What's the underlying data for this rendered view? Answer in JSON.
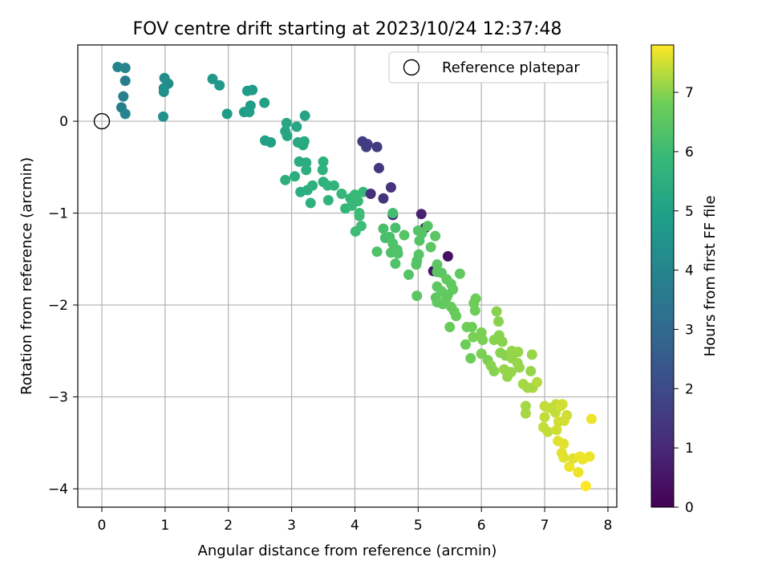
{
  "chart_data": {
    "type": "scatter",
    "title": "FOV centre drift starting at 2023/10/24 12:37:48",
    "xlabel": "Angular distance from reference (arcmin)",
    "ylabel": "Rotation from reference (arcmin)",
    "xlim": [
      -0.38,
      8.14
    ],
    "ylim": [
      -4.2,
      0.83
    ],
    "xticks": [
      0,
      1,
      2,
      3,
      4,
      5,
      6,
      7,
      8
    ],
    "yticks": [
      0,
      -1,
      -2,
      -3,
      -4
    ],
    "grid": true,
    "legend": {
      "position": "top-right",
      "entries": [
        "Reference platepar"
      ]
    },
    "reference_point": {
      "x": 0,
      "y": 0
    },
    "colorbar": {
      "label": "Hours from first FF file",
      "range": [
        0,
        7.8
      ],
      "ticks": [
        0,
        1,
        2,
        3,
        4,
        5,
        6,
        7
      ],
      "colormap": "viridis"
    },
    "points": [
      [
        0.25,
        0.59,
        4.0
      ],
      [
        0.37,
        0.58,
        4.0
      ],
      [
        0.37,
        0.44,
        3.8
      ],
      [
        0.34,
        0.27,
        3.7
      ],
      [
        0.31,
        0.15,
        3.8
      ],
      [
        0.37,
        0.08,
        4.0
      ],
      [
        0.99,
        0.47,
        4.3
      ],
      [
        1.05,
        0.41,
        4.3
      ],
      [
        0.98,
        0.36,
        4.3
      ],
      [
        0.98,
        0.32,
        4.4
      ],
      [
        0.97,
        0.05,
        4.4
      ],
      [
        1.75,
        0.46,
        4.7
      ],
      [
        1.86,
        0.39,
        4.7
      ],
      [
        1.98,
        0.08,
        4.8
      ],
      [
        2.25,
        0.1,
        4.8
      ],
      [
        2.3,
        0.33,
        4.8
      ],
      [
        2.38,
        0.34,
        4.8
      ],
      [
        2.35,
        0.17,
        4.8
      ],
      [
        2.33,
        0.1,
        4.9
      ],
      [
        2.57,
        0.2,
        5.0
      ],
      [
        2.58,
        -0.21,
        5.0
      ],
      [
        2.67,
        -0.23,
        5.0
      ],
      [
        2.92,
        -0.02,
        5.2
      ],
      [
        2.9,
        -0.11,
        5.2
      ],
      [
        2.93,
        -0.16,
        5.2
      ],
      [
        3.08,
        -0.06,
        5.2
      ],
      [
        3.21,
        0.06,
        5.1
      ],
      [
        3.1,
        -0.23,
        5.3
      ],
      [
        3.2,
        -0.22,
        5.3
      ],
      [
        3.18,
        -0.26,
        5.3
      ],
      [
        3.12,
        -0.44,
        5.4
      ],
      [
        3.23,
        -0.45,
        5.4
      ],
      [
        3.23,
        -0.53,
        5.5
      ],
      [
        3.05,
        -0.6,
        5.5
      ],
      [
        2.9,
        -0.64,
        5.5
      ],
      [
        3.14,
        -0.77,
        5.5
      ],
      [
        3.25,
        -0.75,
        5.5
      ],
      [
        3.33,
        -0.7,
        5.6
      ],
      [
        3.3,
        -0.89,
        5.6
      ],
      [
        3.5,
        -0.44,
        5.6
      ],
      [
        3.49,
        -0.53,
        5.6
      ],
      [
        3.5,
        -0.66,
        5.6
      ],
      [
        3.57,
        -0.7,
        5.7
      ],
      [
        3.67,
        -0.7,
        5.7
      ],
      [
        3.58,
        -0.86,
        5.7
      ],
      [
        3.79,
        -0.79,
        5.8
      ],
      [
        3.93,
        -0.84,
        5.8
      ],
      [
        3.85,
        -0.95,
        5.8
      ],
      [
        4.0,
        -0.8,
        5.9
      ],
      [
        4.05,
        -0.87,
        5.9
      ],
      [
        3.95,
        -0.92,
        5.9
      ],
      [
        4.13,
        -0.77,
        5.9
      ],
      [
        4.07,
        -1.0,
        6.0
      ],
      [
        4.07,
        -1.03,
        6.0
      ],
      [
        4.1,
        -1.14,
        6.0
      ],
      [
        4.01,
        -1.2,
        6.0
      ],
      [
        4.12,
        -0.22,
        1.6
      ],
      [
        4.18,
        -0.28,
        1.6
      ],
      [
        4.2,
        -0.25,
        1.6
      ],
      [
        4.35,
        -0.28,
        1.5
      ],
      [
        4.38,
        -0.51,
        1.4
      ],
      [
        4.57,
        -0.72,
        1.3
      ],
      [
        4.45,
        -0.84,
        1.3
      ],
      [
        4.25,
        -0.79,
        1.2
      ],
      [
        4.6,
        -1.02,
        1.1
      ],
      [
        5.05,
        -1.01,
        0.8
      ],
      [
        5.11,
        -1.16,
        0.6
      ],
      [
        5.47,
        -1.47,
        0.4
      ],
      [
        5.24,
        -1.63,
        0.5
      ],
      [
        4.6,
        -1.0,
        6.1
      ],
      [
        4.64,
        -1.16,
        6.2
      ],
      [
        4.45,
        -1.17,
        6.2
      ],
      [
        4.48,
        -1.27,
        6.2
      ],
      [
        4.55,
        -1.26,
        6.2
      ],
      [
        4.35,
        -1.42,
        6.3
      ],
      [
        4.6,
        -1.33,
        6.3
      ],
      [
        4.67,
        -1.4,
        6.3
      ],
      [
        4.57,
        -1.43,
        6.3
      ],
      [
        4.68,
        -1.44,
        6.3
      ],
      [
        4.64,
        -1.55,
        6.3
      ],
      [
        4.78,
        -1.24,
        6.4
      ],
      [
        4.85,
        -1.67,
        6.4
      ],
      [
        4.97,
        -1.56,
        6.4
      ],
      [
        4.98,
        -1.52,
        6.4
      ],
      [
        5.01,
        -1.45,
        6.4
      ],
      [
        5.02,
        -1.3,
        6.4
      ],
      [
        5.0,
        -1.19,
        6.4
      ],
      [
        5.06,
        -1.22,
        6.4
      ],
      [
        5.15,
        -1.14,
        6.4
      ],
      [
        5.2,
        -1.37,
        6.5
      ],
      [
        5.27,
        -1.25,
        6.5
      ],
      [
        4.98,
        -1.9,
        6.5
      ],
      [
        5.3,
        -1.56,
        6.5
      ],
      [
        5.3,
        -1.64,
        6.5
      ],
      [
        5.37,
        -1.65,
        6.5
      ],
      [
        5.3,
        -1.8,
        6.5
      ],
      [
        5.28,
        -1.92,
        6.5
      ],
      [
        5.3,
        -1.97,
        6.6
      ],
      [
        5.39,
        -1.99,
        6.6
      ],
      [
        5.37,
        -1.85,
        6.6
      ],
      [
        5.45,
        -1.72,
        6.6
      ],
      [
        5.52,
        -1.77,
        6.6
      ],
      [
        5.55,
        -1.83,
        6.6
      ],
      [
        5.47,
        -1.89,
        6.6
      ],
      [
        5.45,
        -1.92,
        6.6
      ],
      [
        5.52,
        -2.02,
        6.7
      ],
      [
        5.57,
        -2.07,
        6.7
      ],
      [
        5.6,
        -2.12,
        6.7
      ],
      [
        5.5,
        -2.24,
        6.7
      ],
      [
        5.66,
        -1.66,
        6.6
      ],
      [
        5.77,
        -2.24,
        6.8
      ],
      [
        5.75,
        -2.43,
        6.8
      ],
      [
        5.83,
        -2.58,
        6.8
      ],
      [
        5.85,
        -2.24,
        6.8
      ],
      [
        5.9,
        -2.06,
        6.8
      ],
      [
        5.91,
        -1.93,
        6.8
      ],
      [
        5.88,
        -1.98,
        6.8
      ],
      [
        5.87,
        -2.35,
        6.9
      ],
      [
        6.0,
        -2.3,
        6.9
      ],
      [
        6.02,
        -2.38,
        6.9
      ],
      [
        6.0,
        -2.53,
        6.9
      ],
      [
        6.1,
        -2.6,
        6.9
      ],
      [
        6.15,
        -2.66,
        7.0
      ],
      [
        6.2,
        -2.72,
        7.0
      ],
      [
        6.24,
        -2.07,
        7.0
      ],
      [
        6.27,
        -2.18,
        7.0
      ],
      [
        6.2,
        -2.38,
        7.0
      ],
      [
        6.28,
        -2.33,
        7.0
      ],
      [
        6.33,
        -2.4,
        7.0
      ],
      [
        6.3,
        -2.52,
        7.0
      ],
      [
        6.38,
        -2.55,
        7.0
      ],
      [
        6.36,
        -2.7,
        7.1
      ],
      [
        6.41,
        -2.78,
        7.1
      ],
      [
        6.47,
        -2.73,
        7.1
      ],
      [
        6.48,
        -2.58,
        7.1
      ],
      [
        6.48,
        -2.5,
        7.1
      ],
      [
        6.58,
        -2.51,
        7.1
      ],
      [
        6.57,
        -2.63,
        7.1
      ],
      [
        6.6,
        -2.68,
        7.1
      ],
      [
        6.66,
        -2.86,
        7.2
      ],
      [
        6.73,
        -2.9,
        7.2
      ],
      [
        6.78,
        -2.72,
        7.1
      ],
      [
        6.8,
        -2.54,
        7.1
      ],
      [
        6.81,
        -2.9,
        7.2
      ],
      [
        6.7,
        -3.1,
        7.2
      ],
      [
        6.7,
        -3.18,
        7.2
      ],
      [
        6.88,
        -2.84,
        7.3
      ],
      [
        7.0,
        -3.22,
        7.4
      ],
      [
        7.0,
        -3.1,
        7.4
      ],
      [
        6.98,
        -3.33,
        7.4
      ],
      [
        7.05,
        -3.38,
        7.4
      ],
      [
        7.08,
        -3.12,
        7.4
      ],
      [
        7.17,
        -3.17,
        7.4
      ],
      [
        7.18,
        -3.08,
        7.4
      ],
      [
        7.25,
        -3.1,
        7.5
      ],
      [
        7.28,
        -3.08,
        7.5
      ],
      [
        7.22,
        -3.27,
        7.5
      ],
      [
        7.31,
        -3.26,
        7.5
      ],
      [
        7.35,
        -3.2,
        7.5
      ],
      [
        7.19,
        -3.36,
        7.5
      ],
      [
        7.21,
        -3.48,
        7.6
      ],
      [
        7.3,
        -3.51,
        7.6
      ],
      [
        7.27,
        -3.61,
        7.6
      ],
      [
        7.3,
        -3.66,
        7.6
      ],
      [
        7.39,
        -3.76,
        7.7
      ],
      [
        7.53,
        -3.82,
        7.7
      ],
      [
        7.45,
        -3.67,
        7.6
      ],
      [
        7.56,
        -3.65,
        7.7
      ],
      [
        7.6,
        -3.68,
        7.7
      ],
      [
        7.65,
        -3.97,
        7.8
      ],
      [
        7.71,
        -3.65,
        7.7
      ],
      [
        7.74,
        -3.24,
        7.7
      ]
    ]
  }
}
